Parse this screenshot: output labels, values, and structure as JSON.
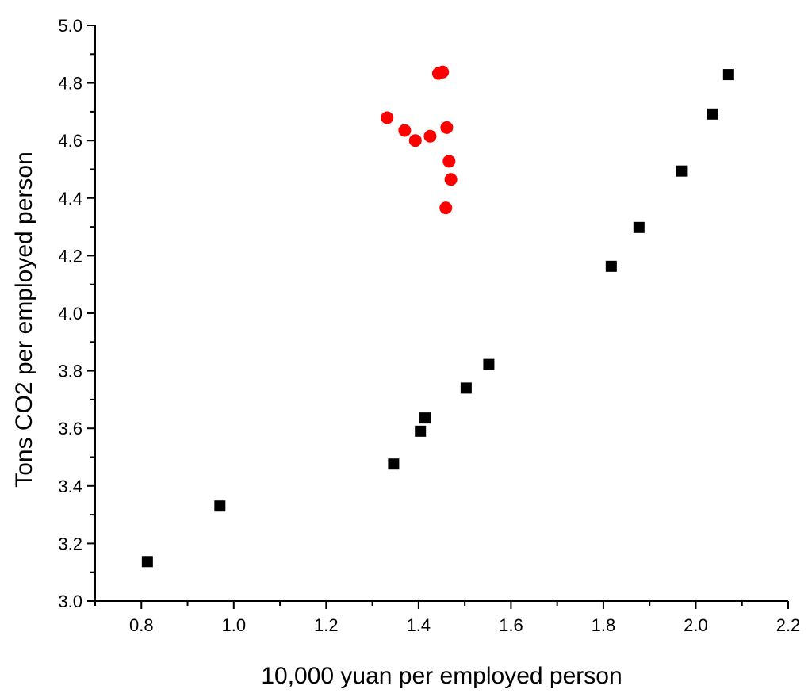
{
  "chart_data": {
    "type": "scatter",
    "title": "",
    "xlabel": "10,000 yuan per employed person",
    "ylabel": "Tons CO2 per employed person",
    "xlim": [
      0.7,
      2.2
    ],
    "ylim": [
      3.0,
      5.0
    ],
    "x_ticks": [
      "0.8",
      "1.0",
      "1.2",
      "1.4",
      "1.6",
      "1.8",
      "2.0",
      "2.2"
    ],
    "y_ticks": [
      "3.0",
      "3.2",
      "3.4",
      "3.6",
      "3.8",
      "4.0",
      "4.2",
      "4.4",
      "4.6",
      "4.8",
      "5.0"
    ],
    "grid": false,
    "legend": "none",
    "series": [
      {
        "marker": "square",
        "color": "#000000",
        "points": [
          [
            0.813,
            3.137
          ],
          [
            0.97,
            3.33
          ],
          [
            1.346,
            3.476
          ],
          [
            1.404,
            3.59
          ],
          [
            1.414,
            3.636
          ],
          [
            1.503,
            3.74
          ],
          [
            1.552,
            3.822
          ],
          [
            1.817,
            4.163
          ],
          [
            1.877,
            4.298
          ],
          [
            1.969,
            4.494
          ],
          [
            2.036,
            4.692
          ],
          [
            2.071,
            4.829
          ]
        ]
      },
      {
        "marker": "circle",
        "color": "#ff0000",
        "points": [
          [
            1.332,
            4.679
          ],
          [
            1.37,
            4.635
          ],
          [
            1.393,
            4.6
          ],
          [
            1.425,
            4.615
          ],
          [
            1.443,
            4.833
          ],
          [
            1.452,
            4.838
          ],
          [
            1.461,
            4.645
          ],
          [
            1.466,
            4.528
          ],
          [
            1.47,
            4.465
          ],
          [
            1.459,
            4.366
          ]
        ]
      }
    ]
  }
}
